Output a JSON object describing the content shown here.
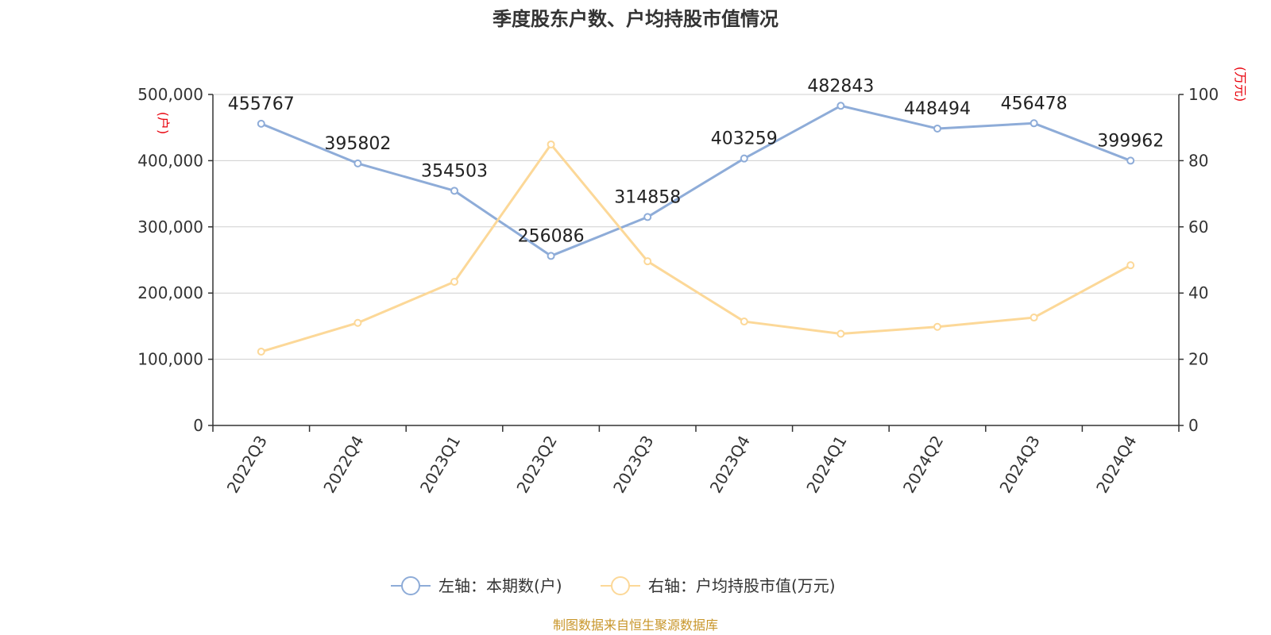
{
  "chart_data": {
    "type": "line",
    "title": "季度股东户数、户均持股市值情况",
    "categories": [
      "2022Q3",
      "2022Q4",
      "2023Q1",
      "2023Q2",
      "2023Q3",
      "2023Q4",
      "2024Q1",
      "2024Q2",
      "2024Q3",
      "2024Q4"
    ],
    "left_axis": {
      "unit": "(户)",
      "min": 0,
      "max": 500000,
      "ticks": [
        "0",
        "100,000",
        "200,000",
        "300,000",
        "400,000",
        "500,000"
      ],
      "tick_values": [
        0,
        100000,
        200000,
        300000,
        400000,
        500000
      ]
    },
    "right_axis": {
      "unit": "(万元)",
      "min": 0,
      "max": 100,
      "ticks": [
        "0",
        "20",
        "40",
        "60",
        "80",
        "100"
      ],
      "tick_values": [
        0,
        20,
        40,
        60,
        80,
        100
      ]
    },
    "series": [
      {
        "name": "左轴：本期数(户)",
        "axis": "left",
        "color": "#8eacd8",
        "values": [
          455767,
          395802,
          354503,
          256086,
          314858,
          403259,
          482843,
          448494,
          456478,
          399962
        ],
        "labels": [
          "455767",
          "395802",
          "354503",
          "256086",
          "314858",
          "403259",
          "482843",
          "448494",
          "456478",
          "399962"
        ]
      },
      {
        "name": "右轴：户均持股市值(万元)",
        "axis": "right",
        "color": "#fcd898",
        "values": [
          22.3,
          31.0,
          43.4,
          84.9,
          49.6,
          31.4,
          27.7,
          29.8,
          32.6,
          48.4
        ]
      }
    ],
    "grid": true,
    "legend_position": "bottom",
    "source": "制图数据来自恒生聚源数据库"
  }
}
